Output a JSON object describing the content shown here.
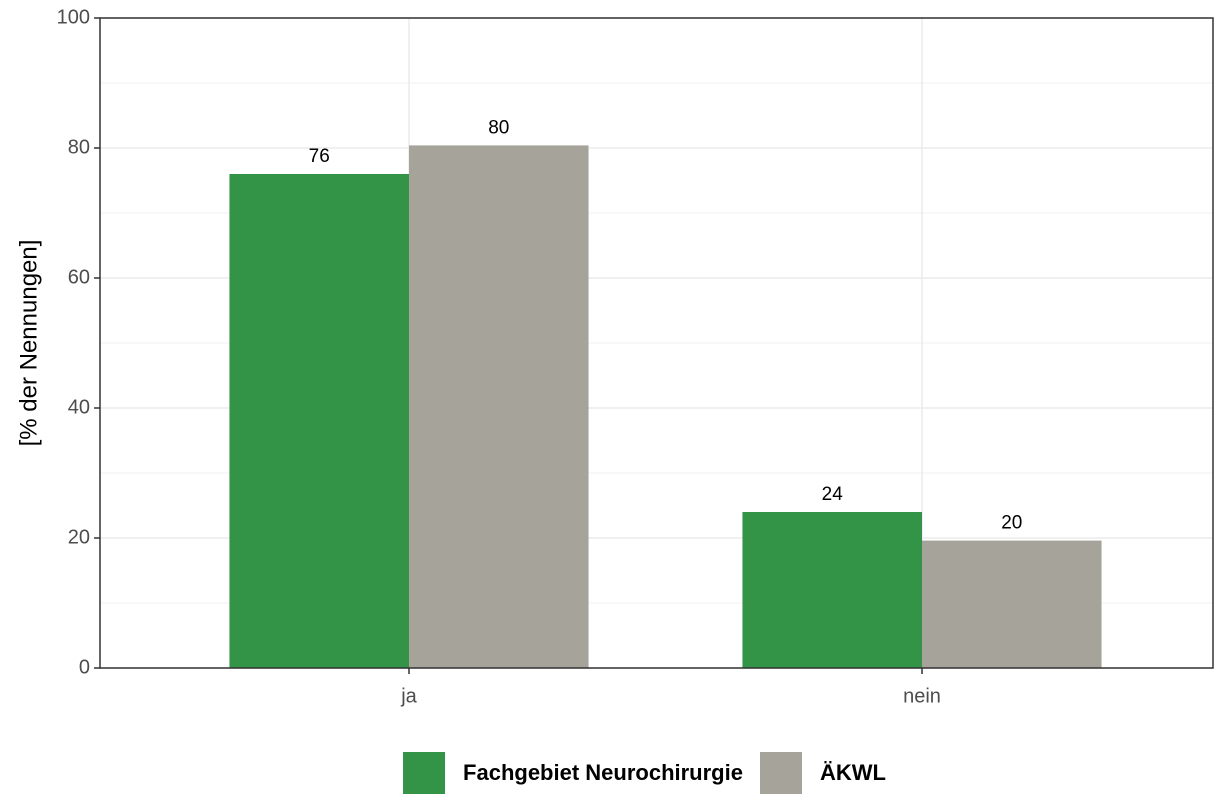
{
  "chart_data": {
    "type": "bar",
    "y_label": "[% der Nennungen]",
    "categories": [
      "ja",
      "nein"
    ],
    "series": [
      {
        "name": "Fachgebiet Neurochirurgie",
        "color": "#339447",
        "values": [
          76,
          24
        ],
        "value_labels": [
          "76",
          "24"
        ]
      },
      {
        "name": "ÄKWL",
        "color": "#a6a39b",
        "values": [
          80.4,
          19.6
        ],
        "value_labels": [
          "80",
          "20"
        ]
      }
    ],
    "ylim": [
      0,
      100
    ],
    "yticks": [
      0,
      20,
      40,
      60,
      80,
      100
    ],
    "grid": true,
    "legend": "bottom"
  }
}
